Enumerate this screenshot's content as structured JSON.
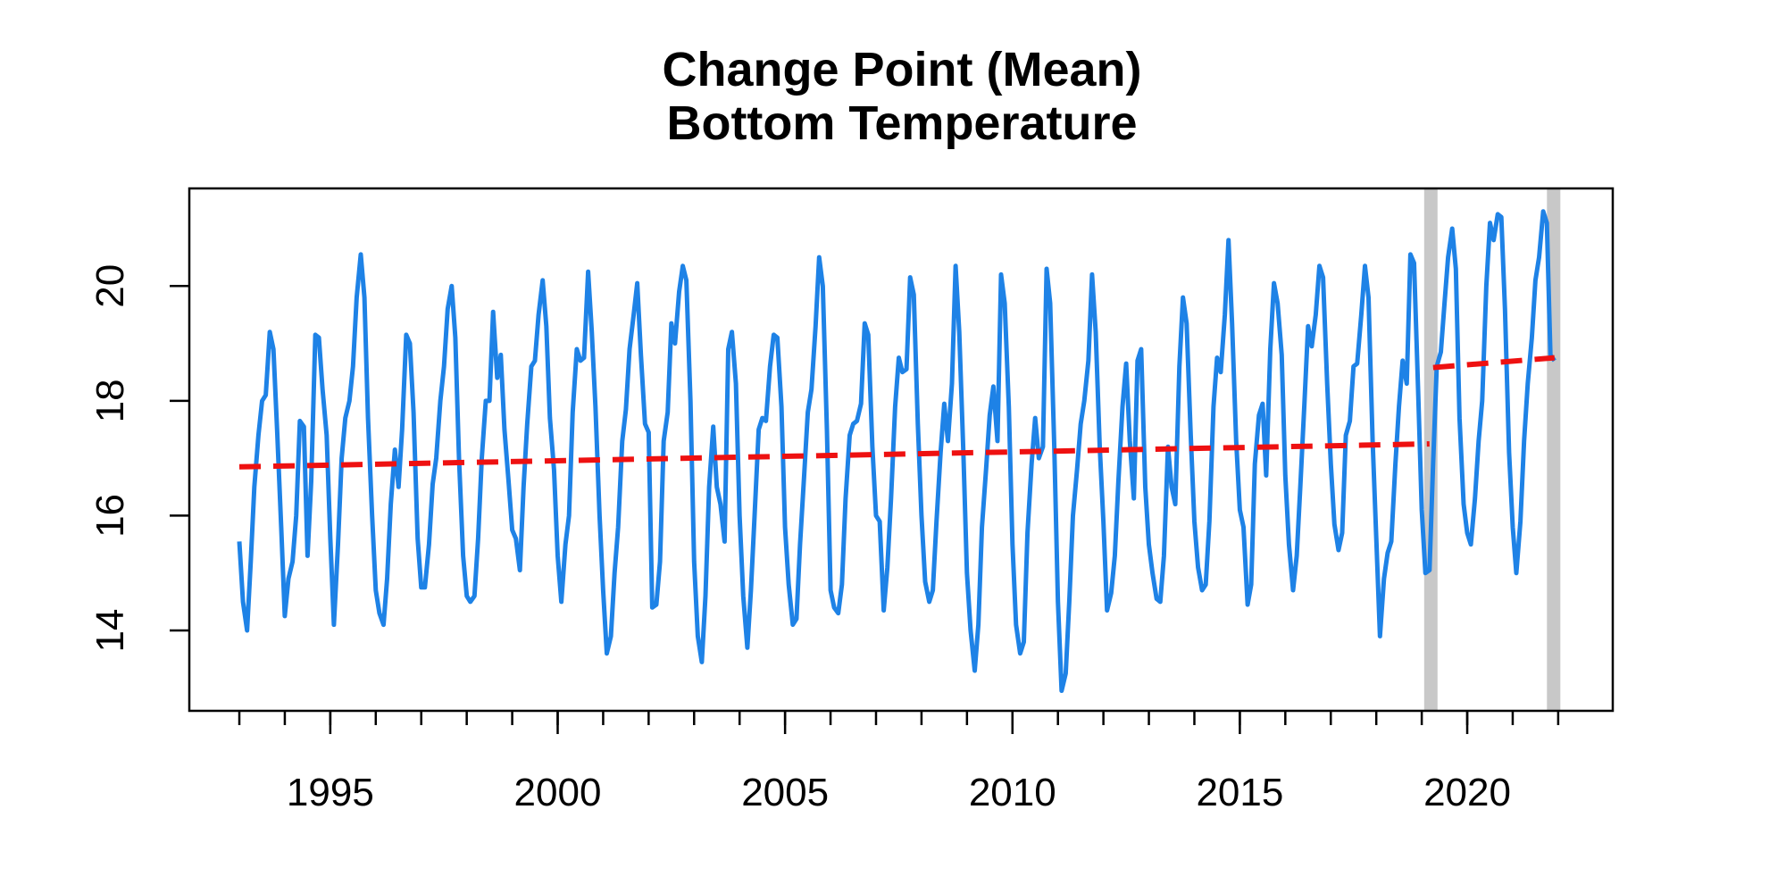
{
  "chart_data": {
    "type": "line",
    "title": "Change Point (Mean)",
    "subtitle": "Bottom Temperature",
    "xlabel": "",
    "ylabel": "",
    "xlim": [
      1991.9,
      2023.2
    ],
    "ylim": [
      12.6,
      21.7
    ],
    "x_ticks": [
      1995,
      2000,
      2005,
      2010,
      2015,
      2020
    ],
    "x_minor_ticks": [
      1993,
      1994,
      1995,
      1996,
      1997,
      1998,
      1999,
      2000,
      2001,
      2002,
      2003,
      2004,
      2005,
      2006,
      2007,
      2008,
      2009,
      2010,
      2011,
      2012,
      2013,
      2014,
      2015,
      2016,
      2017,
      2018,
      2019,
      2020,
      2021,
      2022
    ],
    "y_ticks": [
      14,
      16,
      18,
      20
    ],
    "grid": false,
    "colors": {
      "series": "#1e82e6",
      "trend": "#ee1111",
      "changepoint": "#c8c8c8",
      "axis": "#000000"
    },
    "series": [
      {
        "name": "",
        "x": [
          1993.0,
          1993.08,
          1993.17,
          1993.25,
          1993.33,
          1993.42,
          1993.5,
          1993.58,
          1993.67,
          1993.75,
          1993.83,
          1993.92,
          1994.0,
          1994.08,
          1994.17,
          1994.25,
          1994.33,
          1994.42,
          1994.5,
          1994.58,
          1994.67,
          1994.75,
          1994.83,
          1994.92,
          1995.0,
          1995.08,
          1995.17,
          1995.25,
          1995.33,
          1995.42,
          1995.5,
          1995.58,
          1995.67,
          1995.75,
          1995.83,
          1995.92,
          1996.0,
          1996.08,
          1996.17,
          1996.25,
          1996.33,
          1996.42,
          1996.5,
          1996.58,
          1996.67,
          1996.75,
          1996.83,
          1996.92,
          1997.0,
          1997.08,
          1997.17,
          1997.25,
          1997.33,
          1997.42,
          1997.5,
          1997.58,
          1997.67,
          1997.75,
          1997.83,
          1997.92,
          1998.0,
          1998.08,
          1998.17,
          1998.25,
          1998.33,
          1998.42,
          1998.5,
          1998.58,
          1998.67,
          1998.75,
          1998.83,
          1998.92,
          1999.0,
          1999.08,
          1999.17,
          1999.25,
          1999.33,
          1999.42,
          1999.5,
          1999.58,
          1999.67,
          1999.75,
          1999.83,
          1999.92,
          2000.0,
          2000.08,
          2000.17,
          2000.25,
          2000.33,
          2000.42,
          2000.5,
          2000.58,
          2000.67,
          2000.75,
          2000.83,
          2000.92,
          2001.0,
          2001.08,
          2001.17,
          2001.25,
          2001.33,
          2001.42,
          2001.5,
          2001.58,
          2001.67,
          2001.75,
          2001.83,
          2001.92,
          2002.0,
          2002.08,
          2002.17,
          2002.25,
          2002.33,
          2002.42,
          2002.5,
          2002.58,
          2002.67,
          2002.75,
          2002.83,
          2002.92,
          2003.0,
          2003.08,
          2003.17,
          2003.25,
          2003.33,
          2003.42,
          2003.5,
          2003.58,
          2003.67,
          2003.75,
          2003.83,
          2003.92,
          2004.0,
          2004.08,
          2004.17,
          2004.25,
          2004.33,
          2004.42,
          2004.5,
          2004.58,
          2004.67,
          2004.75,
          2004.83,
          2004.92,
          2005.0,
          2005.08,
          2005.17,
          2005.25,
          2005.33,
          2005.42,
          2005.5,
          2005.58,
          2005.67,
          2005.75,
          2005.83,
          2005.92,
          2006.0,
          2006.08,
          2006.17,
          2006.25,
          2006.33,
          2006.42,
          2006.5,
          2006.58,
          2006.67,
          2006.75,
          2006.83,
          2006.92,
          2007.0,
          2007.08,
          2007.17,
          2007.25,
          2007.33,
          2007.42,
          2007.5,
          2007.58,
          2007.67,
          2007.75,
          2007.83,
          2007.92,
          2008.0,
          2008.08,
          2008.17,
          2008.25,
          2008.33,
          2008.42,
          2008.5,
          2008.58,
          2008.67,
          2008.75,
          2008.83,
          2008.92,
          2009.0,
          2009.08,
          2009.17,
          2009.25,
          2009.33,
          2009.42,
          2009.5,
          2009.58,
          2009.67,
          2009.75,
          2009.83,
          2009.92,
          2010.0,
          2010.08,
          2010.17,
          2010.25,
          2010.33,
          2010.42,
          2010.5,
          2010.58,
          2010.67,
          2010.75,
          2010.83,
          2010.92,
          2011.0,
          2011.08,
          2011.17,
          2011.25,
          2011.33,
          2011.42,
          2011.5,
          2011.58,
          2011.67,
          2011.75,
          2011.83,
          2011.92,
          2012.0,
          2012.08,
          2012.17,
          2012.25,
          2012.33,
          2012.42,
          2012.5,
          2012.58,
          2012.67,
          2012.75,
          2012.83,
          2012.92,
          2013.0,
          2013.08,
          2013.17,
          2013.25,
          2013.33,
          2013.42,
          2013.5,
          2013.58,
          2013.67,
          2013.75,
          2013.83,
          2013.92,
          2014.0,
          2014.08,
          2014.17,
          2014.25,
          2014.33,
          2014.42,
          2014.5,
          2014.58,
          2014.67,
          2014.75,
          2014.83,
          2014.92,
          2015.0,
          2015.08,
          2015.17,
          2015.25,
          2015.33,
          2015.42,
          2015.5,
          2015.58,
          2015.67,
          2015.75,
          2015.83,
          2015.92,
          2016.0,
          2016.08,
          2016.17,
          2016.25,
          2016.33,
          2016.42,
          2016.5,
          2016.58,
          2016.67,
          2016.75,
          2016.83,
          2016.92,
          2017.0,
          2017.08,
          2017.17,
          2017.25,
          2017.33,
          2017.42,
          2017.5,
          2017.58,
          2017.67,
          2017.75,
          2017.83,
          2017.92,
          2018.0,
          2018.08,
          2018.17,
          2018.25,
          2018.33,
          2018.42,
          2018.5,
          2018.58,
          2018.67,
          2018.75,
          2018.83,
          2018.92,
          2019.0,
          2019.08,
          2019.17,
          2019.25,
          2019.33,
          2019.42,
          2019.5,
          2019.58,
          2019.67,
          2019.75,
          2019.83,
          2019.92,
          2020.0,
          2020.08,
          2020.17,
          2020.25,
          2020.33,
          2020.42,
          2020.5,
          2020.58,
          2020.67,
          2020.75,
          2020.83,
          2020.92,
          2021.0,
          2021.08,
          2021.17,
          2021.25,
          2021.33,
          2021.42,
          2021.5,
          2021.58,
          2021.67,
          2021.75,
          2021.83,
          2021.92
        ],
        "y": [
          15.55,
          14.5,
          14.0,
          15.2,
          16.5,
          17.4,
          18.0,
          18.1,
          19.2,
          18.9,
          17.5,
          15.8,
          14.25,
          14.9,
          15.2,
          16.0,
          17.65,
          17.55,
          15.3,
          16.6,
          19.15,
          19.1,
          18.2,
          17.4,
          15.6,
          14.1,
          15.5,
          17.0,
          17.7,
          18.0,
          18.6,
          19.8,
          20.55,
          19.8,
          17.7,
          16.0,
          14.7,
          14.3,
          14.1,
          14.9,
          16.2,
          17.15,
          16.5,
          17.5,
          19.15,
          19.0,
          17.8,
          15.6,
          14.75,
          14.75,
          15.5,
          16.55,
          17.0,
          18.0,
          18.6,
          19.6,
          20.0,
          19.1,
          17.0,
          15.3,
          14.6,
          14.5,
          14.6,
          15.6,
          17.0,
          18.0,
          18.0,
          19.55,
          18.4,
          18.8,
          17.5,
          16.6,
          15.75,
          15.6,
          15.05,
          16.5,
          17.6,
          18.6,
          18.7,
          19.5,
          20.1,
          19.3,
          17.7,
          16.8,
          15.3,
          14.5,
          15.5,
          16.0,
          17.8,
          18.9,
          18.7,
          18.75,
          20.25,
          19.2,
          17.9,
          16.0,
          14.7,
          13.6,
          13.9,
          15.0,
          15.8,
          17.3,
          17.85,
          18.9,
          19.5,
          20.05,
          18.8,
          17.6,
          17.45,
          14.4,
          14.45,
          15.2,
          17.3,
          17.8,
          19.35,
          19.0,
          19.9,
          20.35,
          20.1,
          18.0,
          15.2,
          13.9,
          13.45,
          14.6,
          16.5,
          17.55,
          16.5,
          16.2,
          15.55,
          18.9,
          19.2,
          18.3,
          16.0,
          14.6,
          13.7,
          14.7,
          16.0,
          17.5,
          17.7,
          17.65,
          18.6,
          19.15,
          19.1,
          17.9,
          15.8,
          14.8,
          14.1,
          14.2,
          15.5,
          16.7,
          17.8,
          18.2,
          19.3,
          20.5,
          20.0,
          17.5,
          14.7,
          14.4,
          14.3,
          14.8,
          16.3,
          17.4,
          17.6,
          17.65,
          17.95,
          19.35,
          19.15,
          17.2,
          16.0,
          15.9,
          14.35,
          15.1,
          16.3,
          17.9,
          18.75,
          18.5,
          18.55,
          20.15,
          19.85,
          17.6,
          16.0,
          14.85,
          14.5,
          14.7,
          15.9,
          17.1,
          17.95,
          17.3,
          18.3,
          20.35,
          19.2,
          17.1,
          15.0,
          14.0,
          13.3,
          14.1,
          15.8,
          16.8,
          17.75,
          18.25,
          17.3,
          20.2,
          19.7,
          17.9,
          15.5,
          14.1,
          13.6,
          13.8,
          15.7,
          16.9,
          17.7,
          17.0,
          17.2,
          20.3,
          19.7,
          17.2,
          14.5,
          12.95,
          13.25,
          14.5,
          16.0,
          16.8,
          17.6,
          18.0,
          18.7,
          20.2,
          19.2,
          17.2,
          15.9,
          14.35,
          14.65,
          15.3,
          16.6,
          17.9,
          18.65,
          17.3,
          16.3,
          18.7,
          18.9,
          16.5,
          15.5,
          15.0,
          14.55,
          14.5,
          15.3,
          17.2,
          16.5,
          16.2,
          18.6,
          19.8,
          19.35,
          17.4,
          15.9,
          15.1,
          14.7,
          14.8,
          15.9,
          17.9,
          18.75,
          18.5,
          19.5,
          20.8,
          19.35,
          17.3,
          16.1,
          15.8,
          14.45,
          14.8,
          16.9,
          17.75,
          17.95,
          16.7,
          18.9,
          20.05,
          19.7,
          18.8,
          16.7,
          15.5,
          14.7,
          15.3,
          16.5,
          17.95,
          19.3,
          18.95,
          19.5,
          20.35,
          20.15,
          18.3,
          16.9,
          15.85,
          15.4,
          15.7,
          17.4,
          17.65,
          18.6,
          18.65,
          19.5,
          20.35,
          19.8,
          17.3,
          15.6,
          13.9,
          14.9,
          15.35,
          15.55,
          16.9,
          17.9,
          18.7,
          18.3,
          20.55,
          20.4,
          18.2,
          16.1,
          15.0,
          15.05,
          16.9,
          18.6,
          18.85,
          19.7,
          20.5,
          21.0,
          20.3,
          17.7,
          16.2,
          15.7,
          15.5,
          16.3,
          17.3,
          18.0,
          20.0,
          21.1,
          20.8,
          21.25,
          21.2,
          19.6,
          17.1,
          15.8,
          15.0,
          15.9,
          17.3,
          18.3,
          19.1,
          20.1,
          20.5,
          21.3,
          21.1,
          18.8,
          18.7
        ]
      }
    ],
    "trend_segments": [
      {
        "x": [
          1993.0,
          2019.17
        ],
        "y": [
          16.85,
          17.25
        ]
      },
      {
        "x": [
          2019.25,
          2021.92
        ],
        "y": [
          18.58,
          18.75
        ]
      }
    ],
    "changepoints": [
      2019.2,
      2021.9
    ]
  }
}
